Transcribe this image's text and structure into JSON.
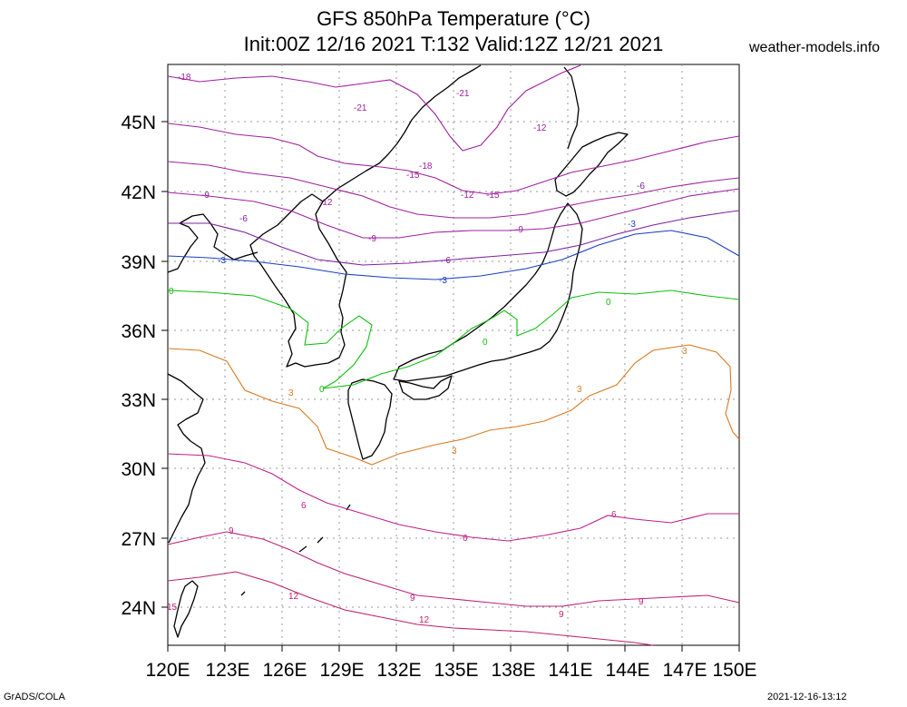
{
  "title_line1": "GFS 850hPa Temperature (°C)",
  "title_line2": "Init:00Z 12/16 2021 T:132 Valid:12Z 12/21 2021",
  "site": "weather-models.info",
  "credit_left": "GrADS/COLA",
  "credit_right": "2021-12-16-13:12",
  "map": {
    "lon_labels": [
      "120E",
      "123E",
      "126E",
      "129E",
      "132E",
      "135E",
      "138E",
      "141E",
      "144E",
      "147E",
      "150E"
    ],
    "lat_labels": [
      "45N",
      "42N",
      "39N",
      "36N",
      "33N",
      "30N",
      "27N",
      "24N"
    ],
    "contour_labels": [
      {
        "text": "-18",
        "color": "#a020a0"
      },
      {
        "text": "-21",
        "color": "#a020a0"
      },
      {
        "text": "-21",
        "color": "#a020a0"
      },
      {
        "text": "-12",
        "color": "#a020a0"
      },
      {
        "text": "-18",
        "color": "#a020a0"
      },
      {
        "text": "-15",
        "color": "#a020a0"
      },
      {
        "text": "-9",
        "color": "#a020a0"
      },
      {
        "text": "-12",
        "color": "#a020a0"
      },
      {
        "text": "-12",
        "color": "#a020a0"
      },
      {
        "text": "-15",
        "color": "#a020a0"
      },
      {
        "text": "-6",
        "color": "#8020a0"
      },
      {
        "text": "-6",
        "color": "#8020a0"
      },
      {
        "text": "-9",
        "color": "#a020a0"
      },
      {
        "text": "-9",
        "color": "#a020a0"
      },
      {
        "text": "-3",
        "color": "#1a3fc0"
      },
      {
        "text": "-3",
        "color": "#1a3fc0"
      },
      {
        "text": "-3",
        "color": "#1a3fc0"
      },
      {
        "text": "-6",
        "color": "#8020a0"
      },
      {
        "text": "0",
        "color": "#10c010"
      },
      {
        "text": "0",
        "color": "#10c010"
      },
      {
        "text": "0",
        "color": "#10c010"
      },
      {
        "text": "0",
        "color": "#10c010"
      },
      {
        "text": "3",
        "color": "#d87a20"
      },
      {
        "text": "3",
        "color": "#d87a20"
      },
      {
        "text": "3",
        "color": "#d87a20"
      },
      {
        "text": "3",
        "color": "#d87a20"
      },
      {
        "text": "6",
        "color": "#c0208a"
      },
      {
        "text": "6",
        "color": "#c0208a"
      },
      {
        "text": "6",
        "color": "#c0208a"
      },
      {
        "text": "9",
        "color": "#c0207a"
      },
      {
        "text": "9",
        "color": "#c0207a"
      },
      {
        "text": "9",
        "color": "#c0207a"
      },
      {
        "text": "9",
        "color": "#c0207a"
      },
      {
        "text": "12",
        "color": "#c0206a"
      },
      {
        "text": "12",
        "color": "#c0206a"
      },
      {
        "text": "15",
        "color": "#c0206a"
      }
    ]
  }
}
